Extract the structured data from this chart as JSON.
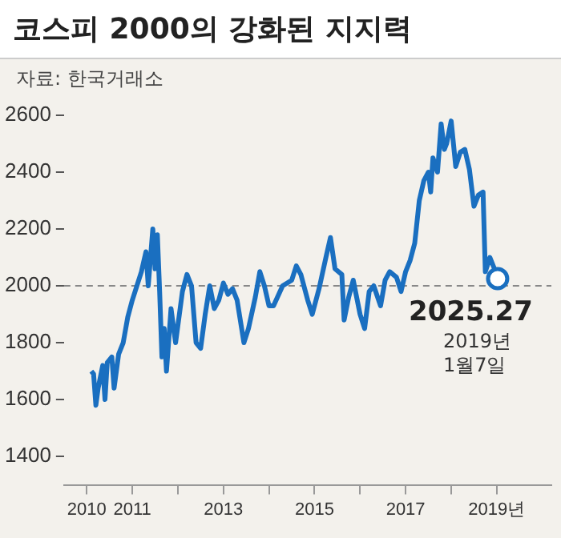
{
  "chart_data": {
    "type": "line",
    "title": "코스피 2000의 강화된 지지력",
    "x": [
      2010.1,
      2010.15,
      2010.2,
      2010.25,
      2010.35,
      2010.4,
      2010.45,
      2010.55,
      2010.6,
      2010.7,
      2010.8,
      2010.9,
      2011.0,
      2011.1,
      2011.2,
      2011.3,
      2011.35,
      2011.45,
      2011.5,
      2011.55,
      2011.6,
      2011.65,
      2011.7,
      2011.75,
      2011.85,
      2011.95,
      2012.1,
      2012.2,
      2012.3,
      2012.4,
      2012.5,
      2012.6,
      2012.7,
      2012.8,
      2012.9,
      2013.0,
      2013.1,
      2013.2,
      2013.3,
      2013.45,
      2013.55,
      2013.7,
      2013.8,
      2013.9,
      2014.0,
      2014.1,
      2014.3,
      2014.5,
      2014.6,
      2014.7,
      2014.85,
      2014.95,
      2015.1,
      2015.25,
      2015.35,
      2015.45,
      2015.6,
      2015.65,
      2015.75,
      2015.85,
      2016.0,
      2016.1,
      2016.2,
      2016.3,
      2016.45,
      2016.55,
      2016.65,
      2016.8,
      2016.9,
      2017.0,
      2017.1,
      2017.2,
      2017.3,
      2017.4,
      2017.5,
      2017.55,
      2017.6,
      2017.7,
      2017.78,
      2017.85,
      2017.9,
      2018.0,
      2018.1,
      2018.2,
      2018.3,
      2018.4,
      2018.5,
      2018.6,
      2018.7,
      2018.75,
      2018.85,
      2018.95,
      2019.02
    ],
    "series": [
      {
        "color": "#1a6fc0",
        "values": [
          1700,
          1690,
          1580,
          1640,
          1720,
          1600,
          1730,
          1750,
          1640,
          1760,
          1800,
          1890,
          1950,
          2000,
          2050,
          2120,
          2000,
          2200,
          2060,
          2180,
          1980,
          1750,
          1850,
          1700,
          1920,
          1800,
          1980,
          2040,
          2000,
          1800,
          1780,
          1900,
          2000,
          1920,
          1950,
          2010,
          1970,
          1990,
          1950,
          1800,
          1850,
          1960,
          2050,
          2000,
          1930,
          1930,
          2000,
          2020,
          2070,
          2040,
          1950,
          1900,
          1990,
          2100,
          2170,
          2060,
          2040,
          1880,
          1960,
          2020,
          1900,
          1850,
          1980,
          2000,
          1930,
          2020,
          2050,
          2030,
          1980,
          2050,
          2090,
          2150,
          2300,
          2370,
          2400,
          2330,
          2450,
          2400,
          2570,
          2480,
          2500,
          2580,
          2420,
          2470,
          2480,
          2410,
          2280,
          2320,
          2330,
          2050,
          2100,
          2060,
          2025.27
        ]
      }
    ],
    "xlim": [
      2009.5,
      2020.2
    ],
    "xticks": [
      {
        "value": 2010,
        "label": "2010"
      },
      {
        "value": 2011,
        "label": "2011"
      },
      {
        "value": 2012,
        "label": null
      },
      {
        "value": 2013,
        "label": "2013"
      },
      {
        "value": 2014,
        "label": null
      },
      {
        "value": 2015,
        "label": "2015"
      },
      {
        "value": 2016,
        "label": null
      },
      {
        "value": 2017,
        "label": "2017"
      },
      {
        "value": 2018,
        "label": null
      },
      {
        "value": 2019,
        "label": "2019년"
      }
    ],
    "ylim": [
      1300,
      2600
    ],
    "yticks": [
      1400,
      1600,
      1800,
      2000,
      2200,
      2400,
      2600
    ],
    "ref_lines": [
      {
        "axis": "y",
        "value": 2000,
        "color": "#888888",
        "line_style": "dashed"
      }
    ],
    "annotations": [
      "자료: 한국거래소",
      {
        "text": "2025.27",
        "x": 2019.02,
        "y": 2025.27
      },
      {
        "text": "2019년 1월7일",
        "x": 2019.02,
        "y": 2025.27
      }
    ],
    "grid": false,
    "legend": false
  }
}
